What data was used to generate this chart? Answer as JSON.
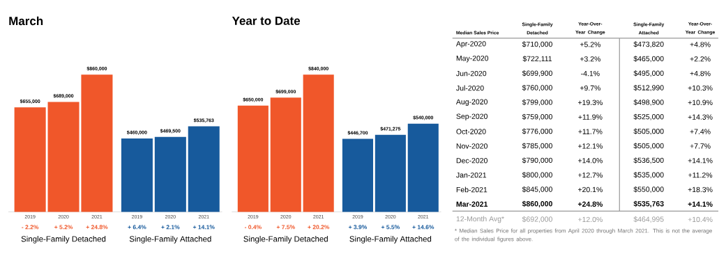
{
  "chart_data": [
    {
      "type": "bar",
      "title": "March",
      "categories": [
        "2019",
        "2020",
        "2021",
        "2019",
        "2020",
        "2021"
      ],
      "values": [
        655000,
        689000,
        860000,
        460000,
        469500,
        535763
      ],
      "colors": [
        "#f0572a",
        "#f0572a",
        "#f0572a",
        "#175a9c",
        "#175a9c",
        "#175a9c"
      ],
      "value_labels": [
        "$655,000",
        "$689,000",
        "$860,000",
        "$460,000",
        "$469,500",
        "$535,763"
      ],
      "annotations": [
        "- 2.2%",
        "+ 5.2%",
        "+ 24.8%",
        "+ 6.4%",
        "+ 2.1%",
        "+ 14.1%",
        "Single-Family Detached",
        "Single-Family Attached"
      ]
    },
    {
      "type": "bar",
      "title": "Year to Date",
      "categories": [
        "2019",
        "2020",
        "2021",
        "2019",
        "2020",
        "2021"
      ],
      "values": [
        650000,
        699000,
        840000,
        446700,
        471275,
        540000
      ],
      "colors": [
        "#f0572a",
        "#f0572a",
        "#f0572a",
        "#175a9c",
        "#175a9c",
        "#175a9c"
      ],
      "value_labels": [
        "$650,000",
        "$699,000",
        "$840,000",
        "$446,700",
        "$471,275",
        "$540,000"
      ],
      "annotations": [
        "- 0.4%",
        "+ 7.5%",
        "+ 20.2%",
        "+ 3.9%",
        "+ 5.5%",
        "+ 14.6%",
        "Single-Family Detached",
        "Single-Family Attached"
      ]
    },
    {
      "type": "other",
      "title": "Median Sales Price",
      "annotations": [
        "Single-Family Detached",
        "Year-Over-Year Change",
        "Single-Family Attached",
        "Year-Over-Year Change",
        "Apr-2020",
        "$710,000",
        "+5.2%",
        "$473,820",
        "+4.8%",
        "May-2020",
        "$722,111",
        "+3.2%",
        "$465,000",
        "+2.2%",
        "Jun-2020",
        "$699,900",
        "-4.1%",
        "$495,000",
        "+4.8%",
        "Jul-2020",
        "$760,000",
        "+9.7%",
        "$512,990",
        "+10.3%",
        "Aug-2020",
        "$799,000",
        "+19.3%",
        "$498,900",
        "+10.9%",
        "Sep-2020",
        "$759,000",
        "+11.9%",
        "$525,000",
        "+14.3%",
        "Oct-2020",
        "$776,000",
        "+11.7%",
        "$505,000",
        "+7.4%",
        "Nov-2020",
        "$785,000",
        "+12.1%",
        "$505,000",
        "+7.7%",
        "Dec-2020",
        "$790,000",
        "+14.0%",
        "$536,500",
        "+14.1%",
        "Jan-2021",
        "$800,000",
        "+12.7%",
        "$535,000",
        "+11.2%",
        "Feb-2021",
        "$845,000",
        "+20.1%",
        "$550,000",
        "+18.3%",
        "Mar-2021",
        "$860,000",
        "+24.8%",
        "$535,763",
        "+14.1%",
        "12-Month Avg*",
        "$692,000",
        "+12.0%",
        "$464,995",
        "+10.4%",
        "* Median Sales Price for all properties from April 2020 through March 2021. This is not the average of the individual figures above."
      ]
    }
  ]
}
